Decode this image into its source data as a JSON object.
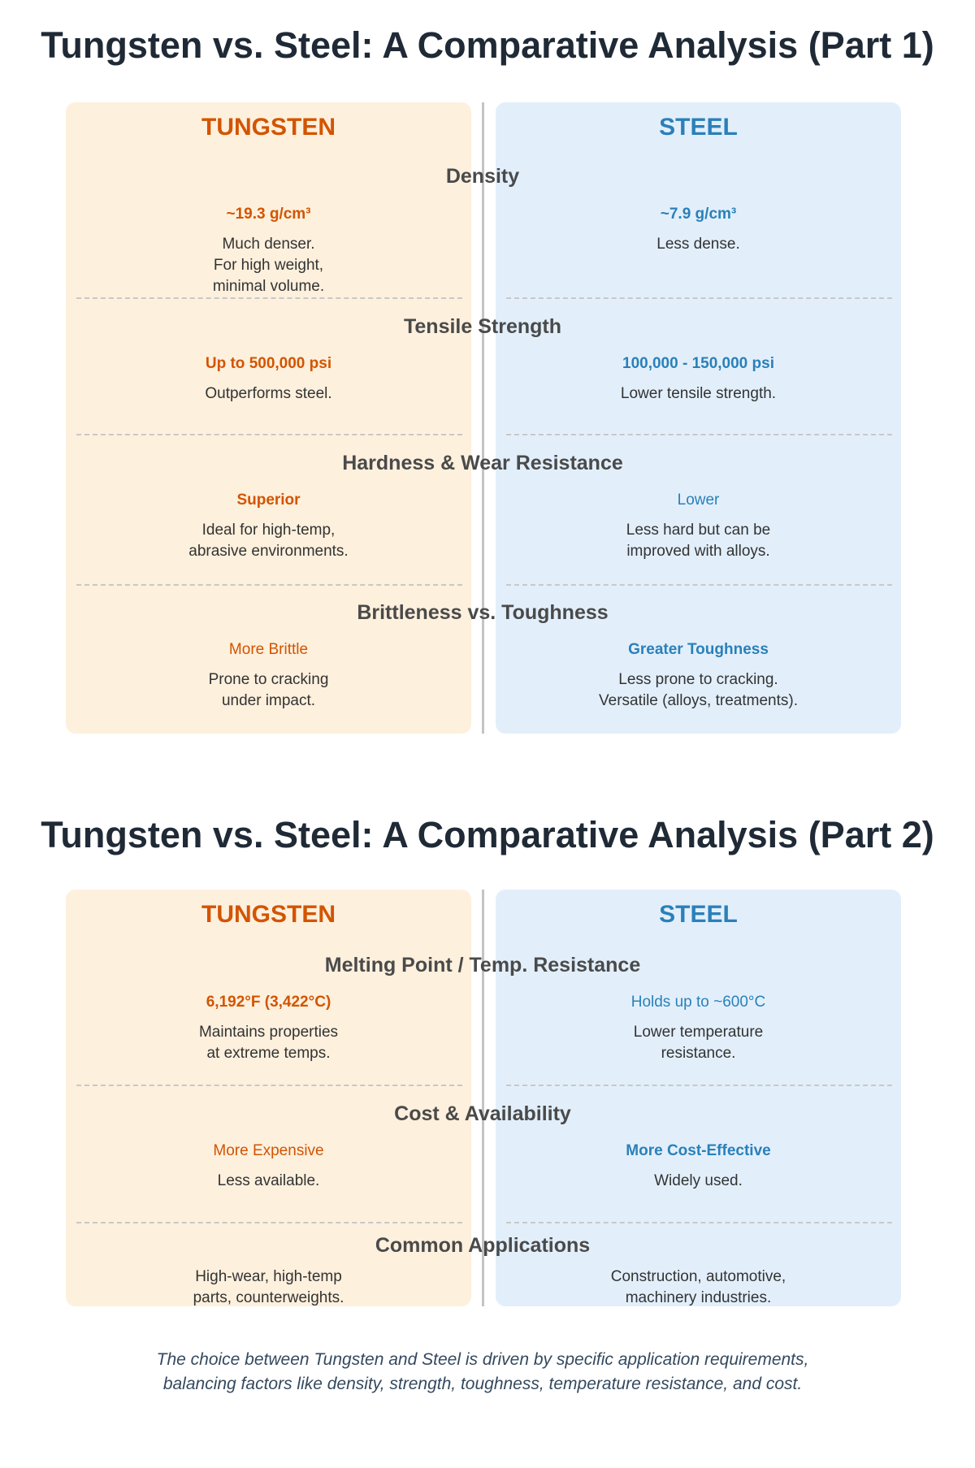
{
  "colors": {
    "tungsten": "#d35400",
    "steel": "#2a80b9",
    "tungsten_bg": "#fdf0dd",
    "steel_bg": "#e2effb"
  },
  "part1": {
    "title": "Tungsten vs. Steel: A Comparative Analysis (Part 1)",
    "tungsten_label": "TUNGSTEN",
    "steel_label": "STEEL",
    "rows": [
      {
        "heading": "Density",
        "tungsten_value": "~19.3 g/cm³",
        "tungsten_desc": "Much denser.\nFor high weight,\nminimal volume.",
        "steel_value": "~7.9 g/cm³",
        "steel_desc": "Less dense."
      },
      {
        "heading": "Tensile Strength",
        "tungsten_value": "Up to 500,000 psi",
        "tungsten_desc": "Outperforms steel.",
        "steel_value": "100,000 - 150,000 psi",
        "steel_desc": "Lower tensile strength."
      },
      {
        "heading": "Hardness & Wear Resistance",
        "tungsten_value": "Superior",
        "tungsten_desc": "Ideal for high-temp,\nabrasive environments.",
        "steel_value": "Lower",
        "steel_desc": "Less hard but can be\nimproved with alloys."
      },
      {
        "heading": "Brittleness vs. Toughness",
        "tungsten_value": "More Brittle",
        "tungsten_desc": "Prone to cracking\nunder impact.",
        "steel_value": "Greater Toughness",
        "steel_desc": "Less prone to cracking.\nVersatile (alloys, treatments)."
      }
    ]
  },
  "part2": {
    "title": "Tungsten vs. Steel: A Comparative Analysis (Part 2)",
    "tungsten_label": "TUNGSTEN",
    "steel_label": "STEEL",
    "rows": [
      {
        "heading": "Melting Point / Temp. Resistance",
        "tungsten_value": "6,192°F (3,422°C)",
        "tungsten_desc": "Maintains properties\nat extreme temps.",
        "steel_value": "Holds up to ~600°C",
        "steel_desc": "Lower temperature\nresistance."
      },
      {
        "heading": "Cost & Availability",
        "tungsten_value": "More Expensive",
        "tungsten_desc": "Less available.",
        "steel_value": "More Cost-Effective",
        "steel_desc": "Widely used."
      },
      {
        "heading": "Common Applications",
        "tungsten_desc": "High-wear, high-temp\nparts, counterweights.",
        "steel_desc": "Construction, automotive,\nmachinery industries."
      }
    ]
  },
  "footer": "The choice between Tungsten and Steel is driven by specific application requirements,\nbalancing factors like density, strength, toughness, temperature resistance, and cost."
}
